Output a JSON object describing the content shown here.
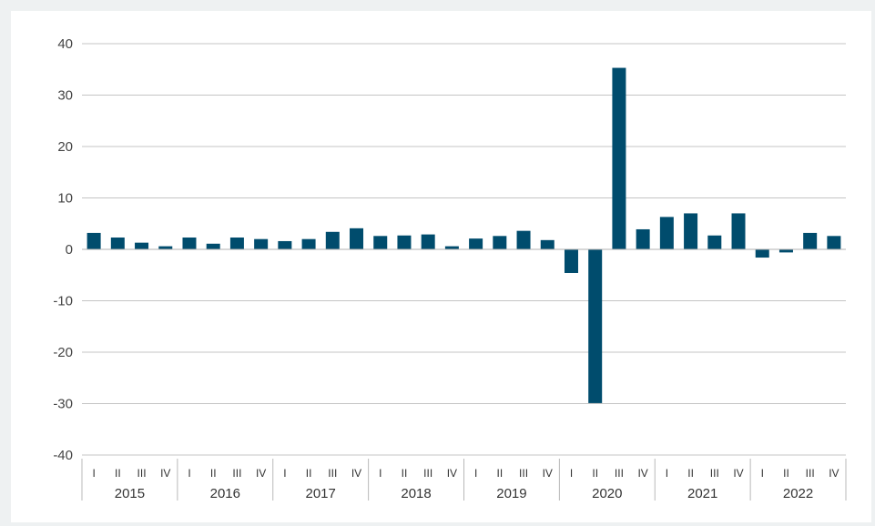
{
  "chart_data": {
    "type": "bar",
    "title": "",
    "xlabel": "",
    "ylabel": "",
    "ylim": [
      -40,
      40
    ],
    "yticks": [
      40,
      30,
      20,
      10,
      0,
      -10,
      -20,
      -30,
      -40
    ],
    "grid": true,
    "bar_color": "#004c6d",
    "years": [
      "2015",
      "2016",
      "2017",
      "2018",
      "2019",
      "2020",
      "2021",
      "2022"
    ],
    "quarters": [
      "I",
      "II",
      "III",
      "IV"
    ],
    "values": [
      3.2,
      2.3,
      1.3,
      0.6,
      2.3,
      1.1,
      2.3,
      2.0,
      1.6,
      2.0,
      3.4,
      4.1,
      2.6,
      2.7,
      2.9,
      0.6,
      2.1,
      2.6,
      3.6,
      1.8,
      -4.6,
      -29.9,
      35.3,
      3.9,
      6.3,
      7.0,
      2.7,
      7.0,
      -1.6,
      -0.6,
      3.2,
      2.6
    ]
  }
}
